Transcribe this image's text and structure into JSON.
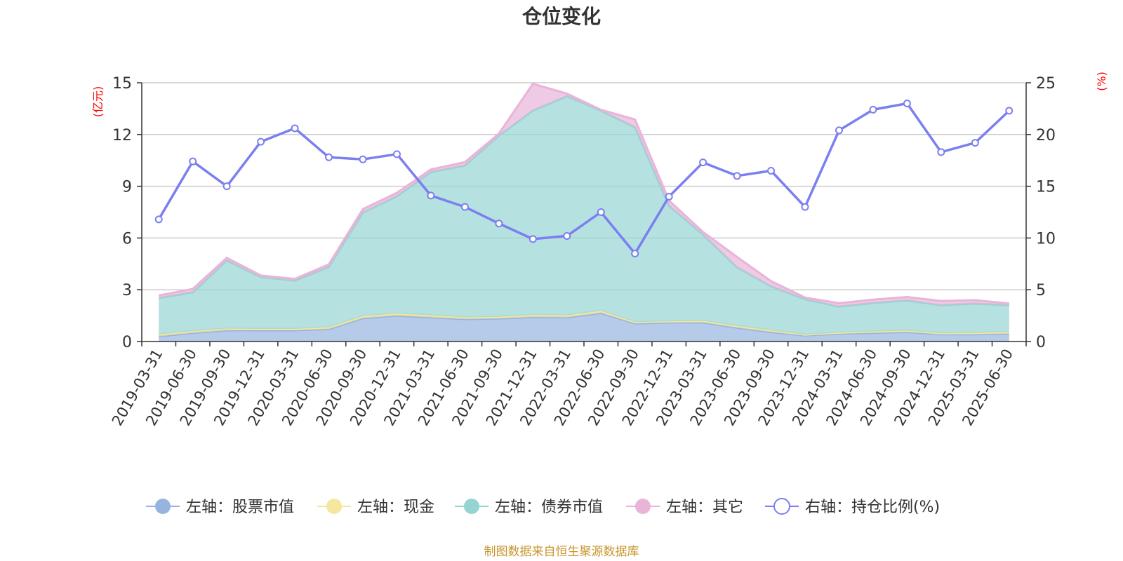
{
  "chart_data": {
    "type": "area",
    "title": "仓位变化",
    "left_unit": "(亿元)",
    "right_unit": "(%)",
    "categories": [
      "2019-03-31",
      "2019-06-30",
      "2019-09-30",
      "2019-12-31",
      "2020-03-31",
      "2020-06-30",
      "2020-09-30",
      "2020-12-31",
      "2021-03-31",
      "2021-06-30",
      "2021-09-30",
      "2021-12-31",
      "2022-03-31",
      "2022-06-30",
      "2022-09-30",
      "2022-12-31",
      "2023-03-31",
      "2023-06-30",
      "2023-09-30",
      "2023-12-31",
      "2024-03-31",
      "2024-06-30",
      "2024-09-30",
      "2024-12-31",
      "2025-03-31",
      "2025-06-30"
    ],
    "left_axis": {
      "min": 0,
      "max": 15,
      "ticks": [
        "0",
        "3",
        "6",
        "9",
        "12",
        "15"
      ]
    },
    "right_axis": {
      "min": 0,
      "max": 25,
      "ticks": [
        "0",
        "5",
        "10",
        "15",
        "20",
        "25"
      ]
    },
    "stacked": true,
    "series": [
      {
        "name": "左轴：股票市值",
        "axis": "left",
        "color": "#97b4e0",
        "values": [
          0.3,
          0.5,
          0.65,
          0.65,
          0.65,
          0.72,
          1.35,
          1.5,
          1.4,
          1.3,
          1.33,
          1.42,
          1.4,
          1.65,
          1.05,
          1.1,
          1.1,
          0.8,
          0.55,
          0.35,
          0.45,
          0.5,
          0.55,
          0.42,
          0.42,
          0.45
        ]
      },
      {
        "name": "左轴：现金",
        "axis": "left",
        "color": "#f5e6a0",
        "values": [
          0.12,
          0.1,
          0.1,
          0.08,
          0.08,
          0.1,
          0.12,
          0.12,
          0.12,
          0.1,
          0.1,
          0.12,
          0.12,
          0.13,
          0.07,
          0.07,
          0.1,
          0.1,
          0.1,
          0.05,
          0.07,
          0.08,
          0.08,
          0.06,
          0.08,
          0.1
        ]
      },
      {
        "name": "左轴：债券市值",
        "axis": "left",
        "color": "#95d4d3",
        "values": [
          2.1,
          2.25,
          3.95,
          3.0,
          2.8,
          3.5,
          6.0,
          6.8,
          8.3,
          8.8,
          10.5,
          11.85,
          12.7,
          11.6,
          11.3,
          6.7,
          5.0,
          3.4,
          2.55,
          2.05,
          1.5,
          1.65,
          1.75,
          1.62,
          1.7,
          1.55
        ]
      },
      {
        "name": "左轴：其它",
        "axis": "left",
        "color": "#e8b4d8",
        "values": [
          0.15,
          0.2,
          0.15,
          0.1,
          0.1,
          0.15,
          0.2,
          0.2,
          0.15,
          0.2,
          0.12,
          1.55,
          0.15,
          0.05,
          0.45,
          0.3,
          0.15,
          0.6,
          0.3,
          0.1,
          0.2,
          0.2,
          0.2,
          0.25,
          0.2,
          0.1
        ]
      },
      {
        "name": "右轴：持仓比例(%)",
        "axis": "right",
        "color": "#7b7ff0",
        "type": "line",
        "values": [
          11.8,
          17.4,
          15.0,
          19.3,
          20.6,
          17.8,
          17.6,
          18.1,
          14.1,
          13.0,
          11.4,
          9.9,
          10.2,
          12.5,
          8.5,
          14.0,
          17.3,
          16.0,
          16.5,
          13.0,
          20.4,
          22.4,
          23.0,
          18.3,
          19.2,
          22.3
        ]
      }
    ],
    "legend": "bottom-center",
    "grid": true,
    "source": "制图数据来自恒生聚源数据库"
  }
}
